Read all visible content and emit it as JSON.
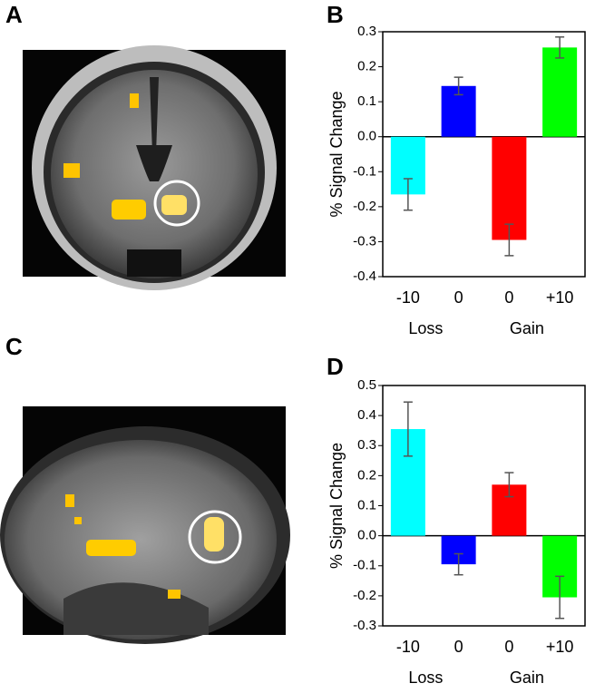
{
  "panel_labels": [
    "A",
    "B",
    "C",
    "D"
  ],
  "chart_data": [
    {
      "type": "bar",
      "ylabel": "% Signal Change",
      "categories": [
        "-10",
        "0",
        "0",
        "+10"
      ],
      "group_labels": [
        "Loss",
        "Gain"
      ],
      "values": [
        -0.165,
        0.145,
        -0.295,
        0.255
      ],
      "errors": [
        0.045,
        0.025,
        0.045,
        0.03
      ],
      "colors": [
        "#00ffff",
        "#0000ff",
        "#ff0000",
        "#00ff00"
      ],
      "ylim": [
        -0.4,
        0.3
      ],
      "yticks": [
        0.3,
        0.2,
        0.1,
        {
          "value": 0,
          "label": "0.0"
        },
        -0.1,
        -0.2,
        -0.3,
        -0.4
      ]
    },
    {
      "type": "bar",
      "ylabel": "% Signal Change",
      "categories": [
        "-10",
        "0",
        "0",
        "+10"
      ],
      "group_labels": [
        "Loss",
        "Gain"
      ],
      "values": [
        0.355,
        -0.095,
        0.17,
        -0.205
      ],
      "errors": [
        0.09,
        0.035,
        0.04,
        0.07
      ],
      "colors": [
        "#00ffff",
        "#0000ff",
        "#ff0000",
        "#00ff00"
      ],
      "ylim": [
        -0.3,
        0.5
      ],
      "yticks": [
        0.5,
        0.4,
        0.3,
        0.2,
        0.1,
        {
          "value": 0,
          "label": "0.0"
        },
        -0.1,
        -0.2,
        -0.3
      ]
    }
  ]
}
